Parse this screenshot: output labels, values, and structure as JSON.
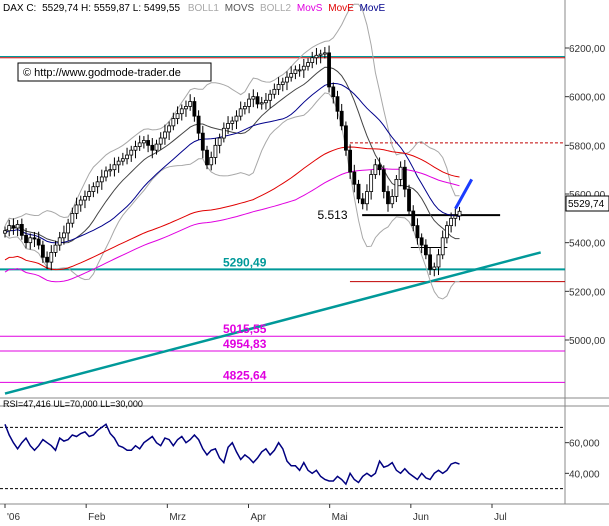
{
  "header": {
    "instrument": "DAX C:",
    "quote": "5529,74 H: 5559,87 L: 5499,55",
    "boll1": "BOLL1",
    "movs_gray": "MOVS",
    "boll2": "BOLL2",
    "movs": "MovS",
    "move_red": "MovE",
    "move_blue": "MovE"
  },
  "watermark": "© http://www.godmode-trader.de",
  "price_label": "5529,74",
  "rsi_header": "RSI=47,416 UL=70,000 LL=30,000",
  "colors": {
    "candle": "#000000",
    "boll": "#a8a8a8",
    "movs": "#000000",
    "move_red": "#e00000",
    "move_blue": "#00008b",
    "magenta": "#e000e0",
    "teal": "#009999",
    "blue_arrow": "#1a3cff",
    "rsi": "#000080"
  },
  "chart_data": {
    "type": "candlestick",
    "symbol": "DAX",
    "last": 5529.74,
    "high": 5559.87,
    "low": 5499.55,
    "ylim": [
      4800,
      6300
    ],
    "y_ticks": [
      {
        "value": 6200,
        "label": "6200,00"
      },
      {
        "value": 6000,
        "label": "6000,00"
      },
      {
        "value": 5800,
        "label": "5800,00"
      },
      {
        "value": 5600,
        "label": "5600,00"
      },
      {
        "value": 5400,
        "label": "5400,00"
      },
      {
        "value": 5200,
        "label": "5200,00"
      },
      {
        "value": 5000,
        "label": "5000,00"
      }
    ],
    "x_ticks": [
      {
        "month": 0.0,
        "label": "'06"
      },
      {
        "month": 1.0,
        "label": "Feb"
      },
      {
        "month": 2.0,
        "label": "Mrz"
      },
      {
        "month": 3.0,
        "label": "Apr"
      },
      {
        "month": 4.0,
        "label": "Mai"
      },
      {
        "month": 5.0,
        "label": "Jun"
      },
      {
        "month": 6.0,
        "label": "Jul"
      }
    ],
    "levels": [
      {
        "label": "5290,49",
        "value": 5290.49,
        "color": "#009999"
      },
      {
        "label": "5015,55",
        "value": 5015.55,
        "color": "#e000e0"
      },
      {
        "label": "4954,83",
        "value": 4954.83,
        "color": "#e000e0"
      },
      {
        "label": "4825,64",
        "value": 4825.64,
        "color": "#e000e0"
      },
      {
        "label": "5.513",
        "value": 5513,
        "color": "#000000"
      }
    ],
    "horizontal_lines": [
      {
        "value": 6160,
        "color": "#c00000",
        "style": "solid"
      },
      {
        "value": 6165,
        "color": "#009999",
        "style": "solid"
      },
      {
        "value": 5810,
        "color": "#c00000",
        "style": "dashed"
      },
      {
        "value": 5240,
        "color": "#c00000",
        "style": "solid"
      },
      {
        "value": 5380,
        "color": "#000000",
        "style": "solid"
      }
    ],
    "trendline": {
      "from": [
        0.0,
        4780
      ],
      "to": [
        6.6,
        5360
      ],
      "color": "#009999"
    },
    "close": [
      5449,
      5470,
      5460,
      5475,
      5430,
      5400,
      5420,
      5415,
      5390,
      5340,
      5320,
      5360,
      5390,
      5420,
      5440,
      5480,
      5520,
      5555,
      5575,
      5590,
      5610,
      5630,
      5650,
      5670,
      5695,
      5700,
      5720,
      5735,
      5745,
      5760,
      5780,
      5795,
      5810,
      5820,
      5800,
      5780,
      5805,
      5830,
      5855,
      5880,
      5910,
      5930,
      5950,
      5960,
      5980,
      5920,
      5850,
      5780,
      5720,
      5750,
      5800,
      5830,
      5870,
      5890,
      5900,
      5920,
      5950,
      5960,
      5990,
      6000,
      5970,
      5975,
      5985,
      6010,
      6030,
      6050,
      6060,
      6080,
      6095,
      6110,
      6110,
      6125,
      6140,
      6160,
      6170,
      6175,
      6180,
      6040,
      6000,
      5940,
      5880,
      5780,
      5690,
      5640,
      5580,
      5560,
      5610,
      5680,
      5720,
      5700,
      5610,
      5560,
      5590,
      5660,
      5710,
      5620,
      5530,
      5470,
      5420,
      5390,
      5350,
      5290,
      5300,
      5350,
      5420,
      5470,
      5500,
      5510,
      5529
    ],
    "rsi": {
      "ylim": [
        20,
        80
      ],
      "upper": 70,
      "lower": 30,
      "y_ticks": [
        {
          "value": 60,
          "label": "60,000"
        },
        {
          "value": 40,
          "label": "40,000"
        }
      ],
      "values": [
        72,
        65,
        60,
        56,
        60,
        63,
        58,
        55,
        58,
        62,
        60,
        58,
        55,
        63,
        61,
        62,
        65,
        64,
        66,
        67,
        64,
        65,
        68,
        70,
        72,
        66,
        63,
        58,
        57,
        55,
        55,
        58,
        56,
        60,
        62,
        64,
        60,
        58,
        63,
        62,
        58,
        62,
        64,
        60,
        62,
        65,
        62,
        56,
        52,
        55,
        56,
        50,
        47,
        57,
        60,
        54,
        49,
        52,
        50,
        47,
        50,
        54,
        56,
        52,
        55,
        60,
        56,
        48,
        45,
        45,
        42,
        47,
        42,
        40,
        42,
        38,
        36,
        35,
        35,
        38,
        36,
        33,
        40,
        36,
        34,
        38,
        40,
        38,
        40,
        48,
        44,
        45,
        47,
        42,
        40,
        43,
        40,
        38,
        36,
        40,
        37,
        36,
        40,
        42,
        40,
        42,
        46,
        47,
        46
      ]
    }
  }
}
